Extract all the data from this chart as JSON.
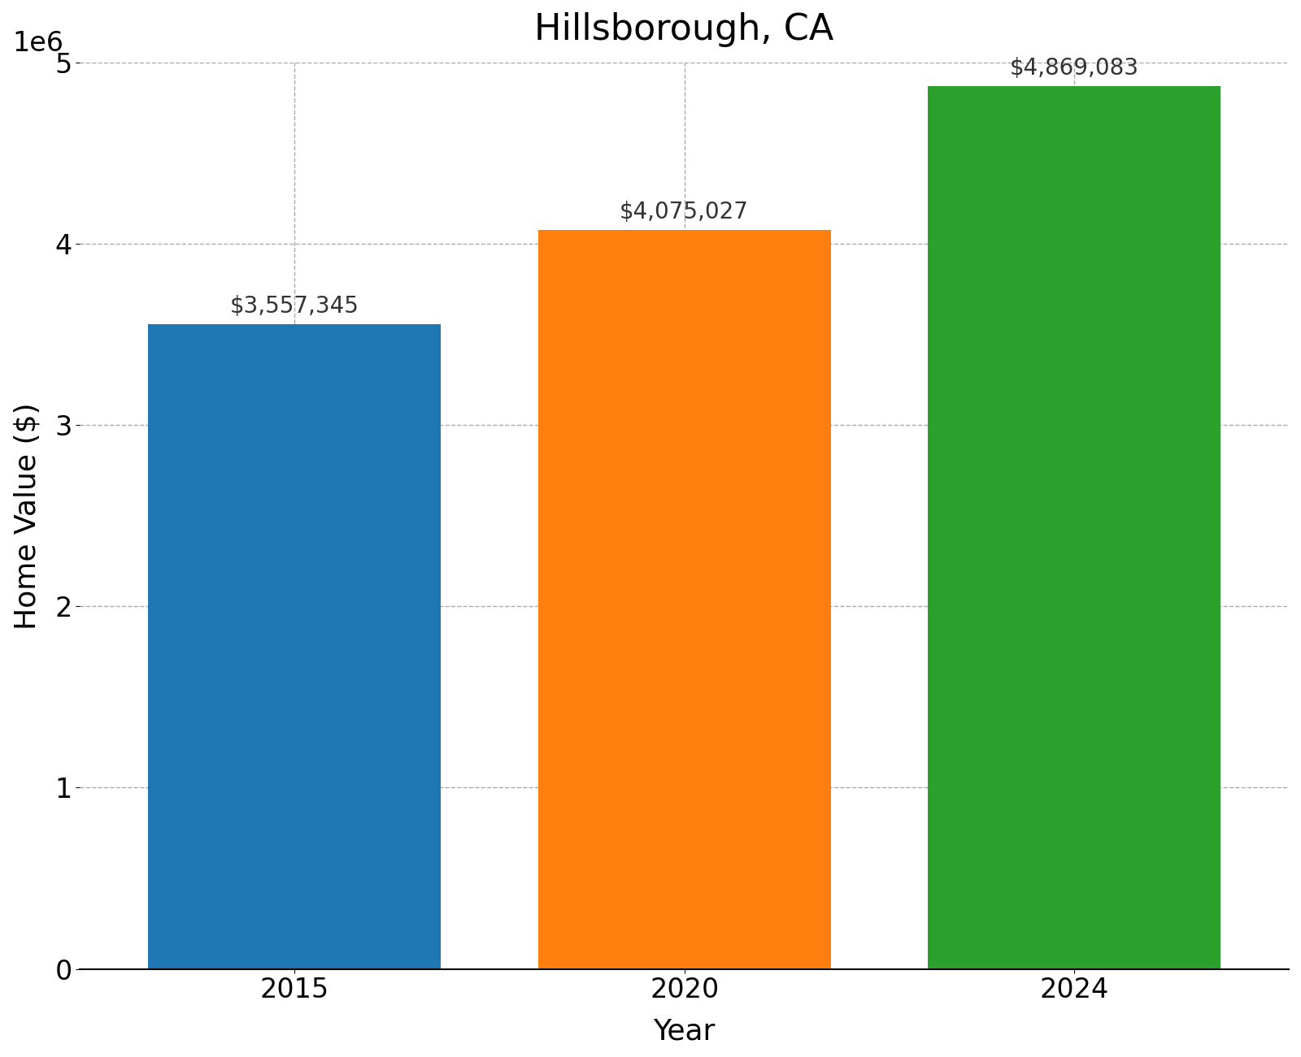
{
  "title": "Hillsborough, CA",
  "xlabel": "Year",
  "ylabel": "Home Value ($)",
  "categories": [
    "2015",
    "2020",
    "2024"
  ],
  "values": [
    3557345,
    4075027,
    4869083
  ],
  "bar_colors": [
    "#1f77b4",
    "#ff7f0e",
    "#2ca02c"
  ],
  "labels": [
    "$3,557,345",
    "$4,075,027",
    "$4,869,083"
  ],
  "ylim": [
    0,
    5000000
  ],
  "yticks": [
    0,
    1000000,
    2000000,
    3000000,
    4000000,
    5000000
  ],
  "title_fontsize": 32,
  "axis_label_fontsize": 26,
  "tick_fontsize": 24,
  "bar_label_fontsize": 20,
  "background_color": "#ffffff",
  "grid_color": "#aaaaaa",
  "bar_width": 0.75
}
